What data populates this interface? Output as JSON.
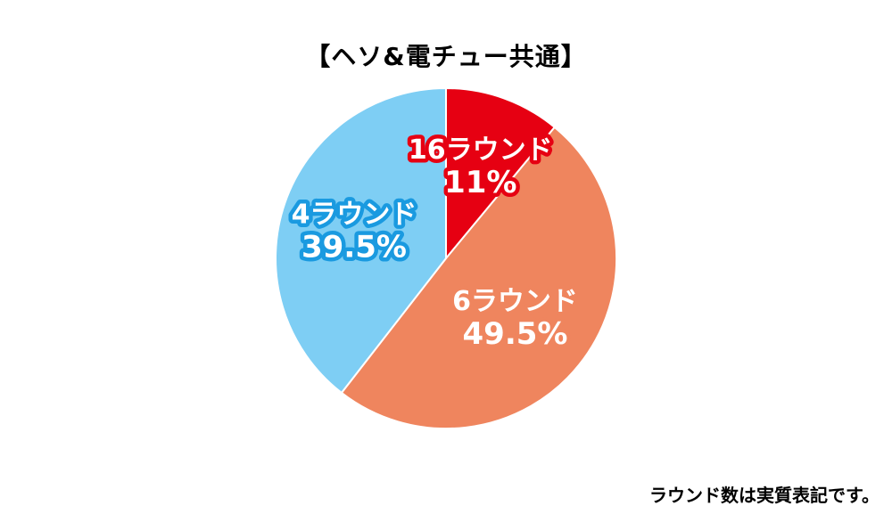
{
  "chart_data": {
    "type": "pie",
    "title": "【ヘソ&電チュー共通】",
    "start_angle": "12 o'clock",
    "direction": "clockwise",
    "slices": [
      {
        "label": "16ラウンド",
        "value": 11,
        "value_label": "11%",
        "color": "#e60012",
        "label_outline": "#e60012"
      },
      {
        "label": "6ラウンド",
        "value": 49.5,
        "value_label": "49.5%",
        "color": "#ef855e",
        "label_outline": "#ef855e"
      },
      {
        "label": "4ラウンド",
        "value": 39.5,
        "value_label": "39.5%",
        "color": "#7ecef4",
        "label_outline": "#1a9ae0"
      }
    ]
  },
  "footnote": "ラウンド数は実質表記です。"
}
